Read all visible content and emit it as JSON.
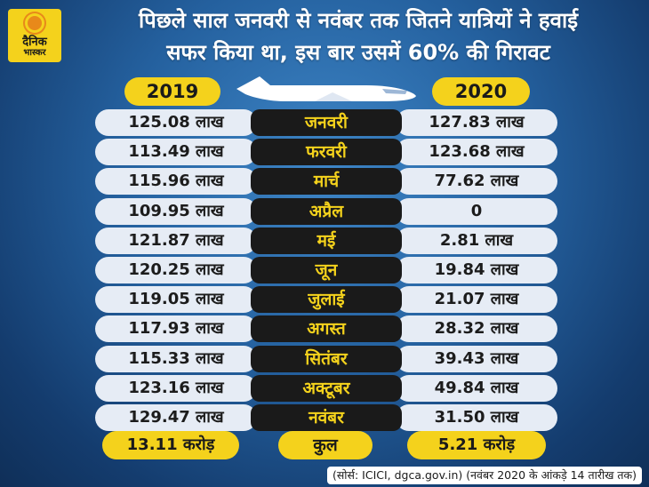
{
  "logo": {
    "line1": "दैनिक",
    "line2": "भास्कर"
  },
  "headline": {
    "line1": "पिछले साल जनवरी से नवंबर तक जितने यात्रियों ने हवाई",
    "line2": "सफर किया था, इस बार उसमें 60% की गिरावट"
  },
  "chart_data": {
    "type": "table",
    "columns": [
      "2019",
      "",
      "2020"
    ],
    "rows": [
      {
        "month": "जनवरी",
        "v2019": "125.08 लाख",
        "v2020": "127.83 लाख"
      },
      {
        "month": "फरवरी",
        "v2019": "113.49 लाख",
        "v2020": "123.68 लाख"
      },
      {
        "month": "मार्च",
        "v2019": "115.96 लाख",
        "v2020": "77.62 लाख"
      },
      {
        "month": "अप्रैल",
        "v2019": "109.95 लाख",
        "v2020": "0"
      },
      {
        "month": "मई",
        "v2019": "121.87 लाख",
        "v2020": "2.81 लाख"
      },
      {
        "month": "जून",
        "v2019": "120.25 लाख",
        "v2020": "19.84 लाख"
      },
      {
        "month": "जुलाई",
        "v2019": "119.05 लाख",
        "v2020": "21.07 लाख"
      },
      {
        "month": "अगस्त",
        "v2019": "117.93 लाख",
        "v2020": "28.32 लाख"
      },
      {
        "month": "सितंबर",
        "v2019": "115.33 लाख",
        "v2020": "39.43 लाख"
      },
      {
        "month": "अक्टूबर",
        "v2019": "123.16 लाख",
        "v2020": "49.84 लाख"
      },
      {
        "month": "नवंबर",
        "v2019": "129.47 लाख",
        "v2020": "31.50 लाख"
      }
    ],
    "total": {
      "label": "कुल",
      "v2019": "13.11 करोड़",
      "v2020": "5.21 करोड़"
    }
  },
  "source": "(सोर्स: ICICI, dgca.gov.in) (नवंबर 2020 के आंकड़े 14 तारीख तक)",
  "colors": {
    "accent": "#f4d21c",
    "background": "#24609e",
    "pill": "#e6ecf5",
    "month_bg": "#1a1a1a"
  }
}
